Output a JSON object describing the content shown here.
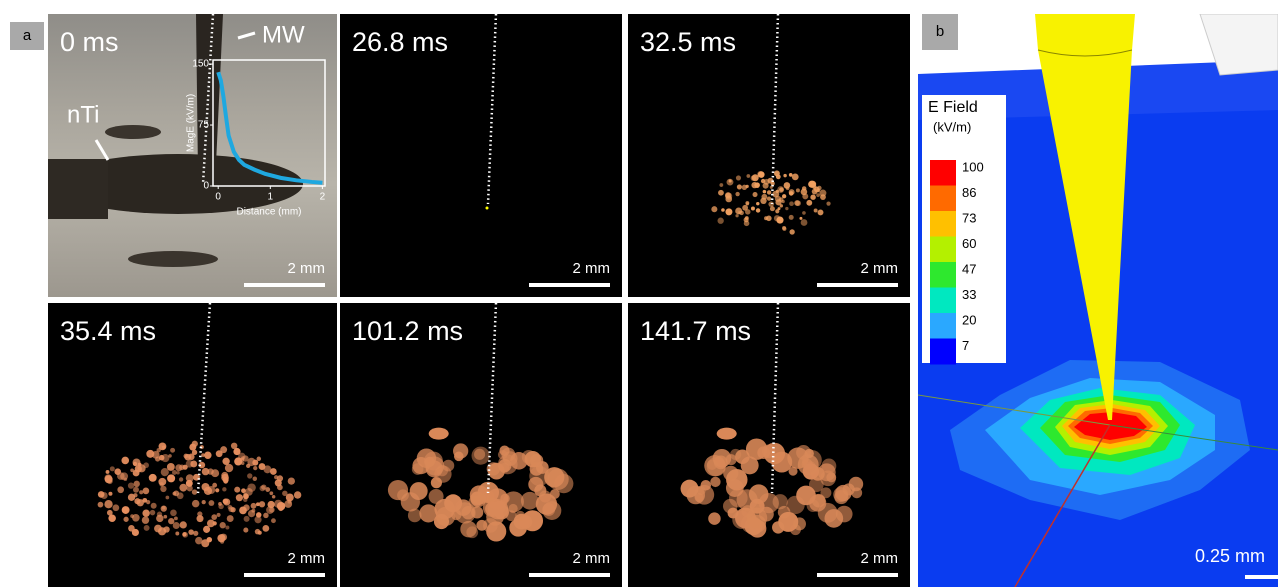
{
  "panel_a": {
    "label": "a",
    "frames": [
      {
        "time": "0 ms",
        "scale_bar": "2 mm"
      },
      {
        "time": "26.8 ms",
        "scale_bar": "2 mm"
      },
      {
        "time": "32.5 ms",
        "scale_bar": "2 mm"
      },
      {
        "time": "35.4 ms",
        "scale_bar": "2 mm"
      },
      {
        "time": "101.2 ms",
        "scale_bar": "2 mm"
      },
      {
        "time": "141.7 ms",
        "scale_bar": "2 mm"
      }
    ],
    "annotations": {
      "mw": "MW",
      "nti": "nTi"
    },
    "inset": {
      "type": "line",
      "x_label": "Distance (mm)",
      "y_label": "MagE (kV/m)",
      "color": "#1fa8e0",
      "xlim": [
        -0.1,
        2.05
      ],
      "ylim": [
        0,
        155
      ],
      "xticks": [
        0,
        1,
        2
      ],
      "yticks": [
        0,
        75,
        150
      ],
      "x": [
        0,
        0.05,
        0.1,
        0.15,
        0.2,
        0.3,
        0.4,
        0.5,
        0.7,
        0.9,
        1.2,
        1.5,
        1.8,
        2.0
      ],
      "values": [
        140,
        130,
        110,
        85,
        62,
        42,
        32,
        26,
        20,
        15,
        10,
        7,
        5,
        4
      ]
    }
  },
  "panel_b": {
    "label": "b",
    "legend_title": "E Field",
    "legend_unit": "(kV/m)",
    "legend_levels": [
      {
        "value": 100,
        "color": "#ff0000"
      },
      {
        "value": 86,
        "color": "#ff6a00"
      },
      {
        "value": 73,
        "color": "#ffc000"
      },
      {
        "value": 60,
        "color": "#b4f000"
      },
      {
        "value": 47,
        "color": "#2ee82e"
      },
      {
        "value": 33,
        "color": "#00e8c0"
      },
      {
        "value": 20,
        "color": "#2aa8ff"
      },
      {
        "value": 7,
        "color": "#0000ff"
      }
    ],
    "scale_bar": "0.25 mm"
  }
}
